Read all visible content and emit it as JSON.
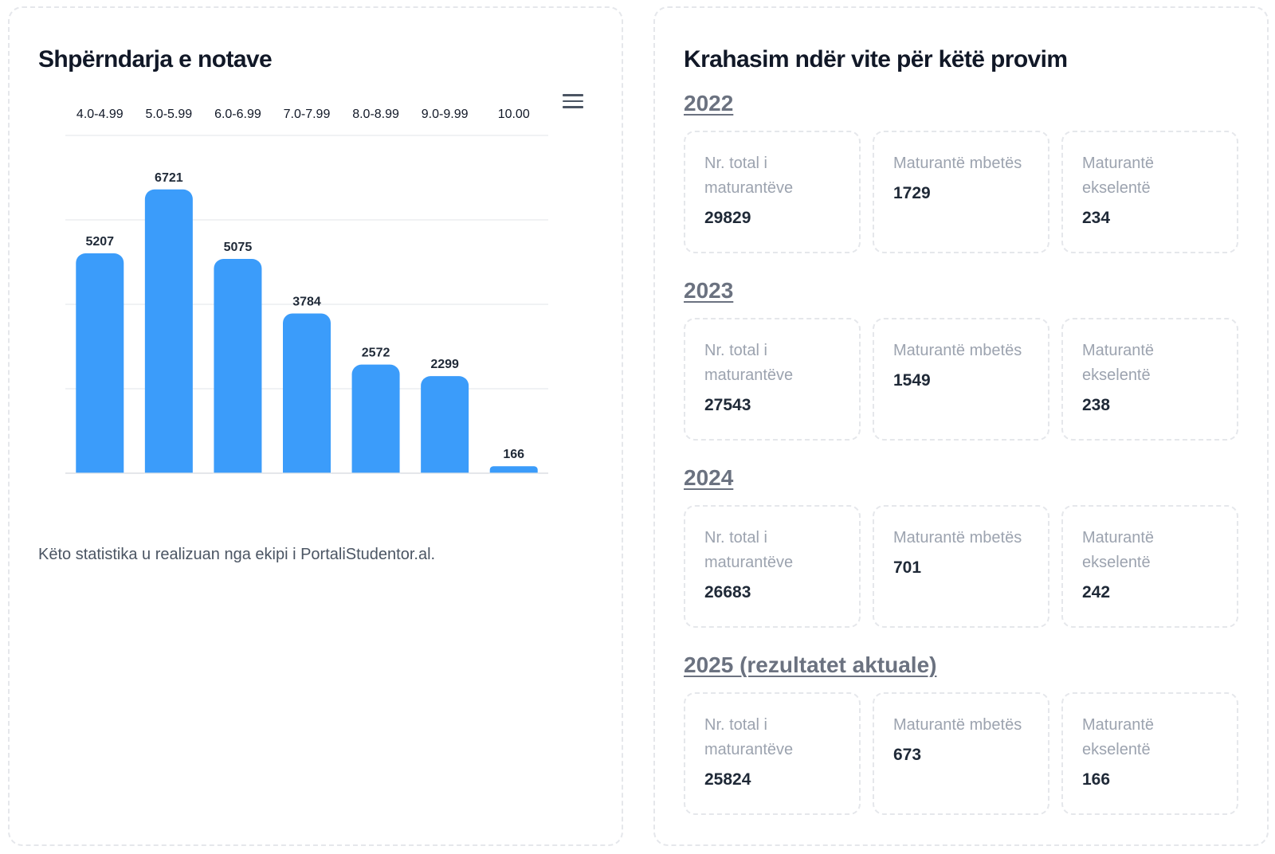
{
  "left": {
    "title": "Shpërndarja e notave",
    "credit": "Këto statistika u realizuan nga ekipi i PortaliStudentor.al."
  },
  "chart_data": {
    "type": "bar",
    "categories": [
      "4.0-4.99",
      "5.0-5.99",
      "6.0-6.99",
      "7.0-7.99",
      "8.0-8.99",
      "9.0-9.99",
      "10.00"
    ],
    "values": [
      5207,
      6721,
      5075,
      3784,
      2572,
      2299,
      166
    ],
    "ylim": [
      0,
      8000
    ],
    "grid": true,
    "x_axis_position": "top",
    "y_axis_labels": false,
    "data_labels": true,
    "bar_color": "#3b9cfa"
  },
  "right": {
    "title": "Krahasim ndër vite për këtë provim",
    "years": [
      {
        "heading": "2022",
        "stats": [
          {
            "label": "Nr. total i maturantëve",
            "value": "29829"
          },
          {
            "label": "Maturantë mbetës",
            "value": "1729"
          },
          {
            "label": "Maturantë ekselentë",
            "value": "234"
          }
        ]
      },
      {
        "heading": "2023",
        "stats": [
          {
            "label": "Nr. total i maturantëve",
            "value": "27543"
          },
          {
            "label": "Maturantë mbetës",
            "value": "1549"
          },
          {
            "label": "Maturantë ekselentë",
            "value": "238"
          }
        ]
      },
      {
        "heading": "2024",
        "stats": [
          {
            "label": "Nr. total i maturantëve",
            "value": "26683"
          },
          {
            "label": "Maturantë mbetës",
            "value": "701"
          },
          {
            "label": "Maturantë ekselentë",
            "value": "242"
          }
        ]
      },
      {
        "heading": "2025 (rezultatet aktuale)",
        "stats": [
          {
            "label": "Nr. total i maturantëve",
            "value": "25824"
          },
          {
            "label": "Maturantë mbetës",
            "value": "673"
          },
          {
            "label": "Maturantë ekselentë",
            "value": "166"
          }
        ]
      }
    ]
  },
  "colors": {
    "bar": "#3b9cfa",
    "title": "#111827",
    "muted": "#9ca3af",
    "border": "#e5e7eb"
  },
  "icons": {
    "chart_menu": "hamburger-menu-icon"
  }
}
